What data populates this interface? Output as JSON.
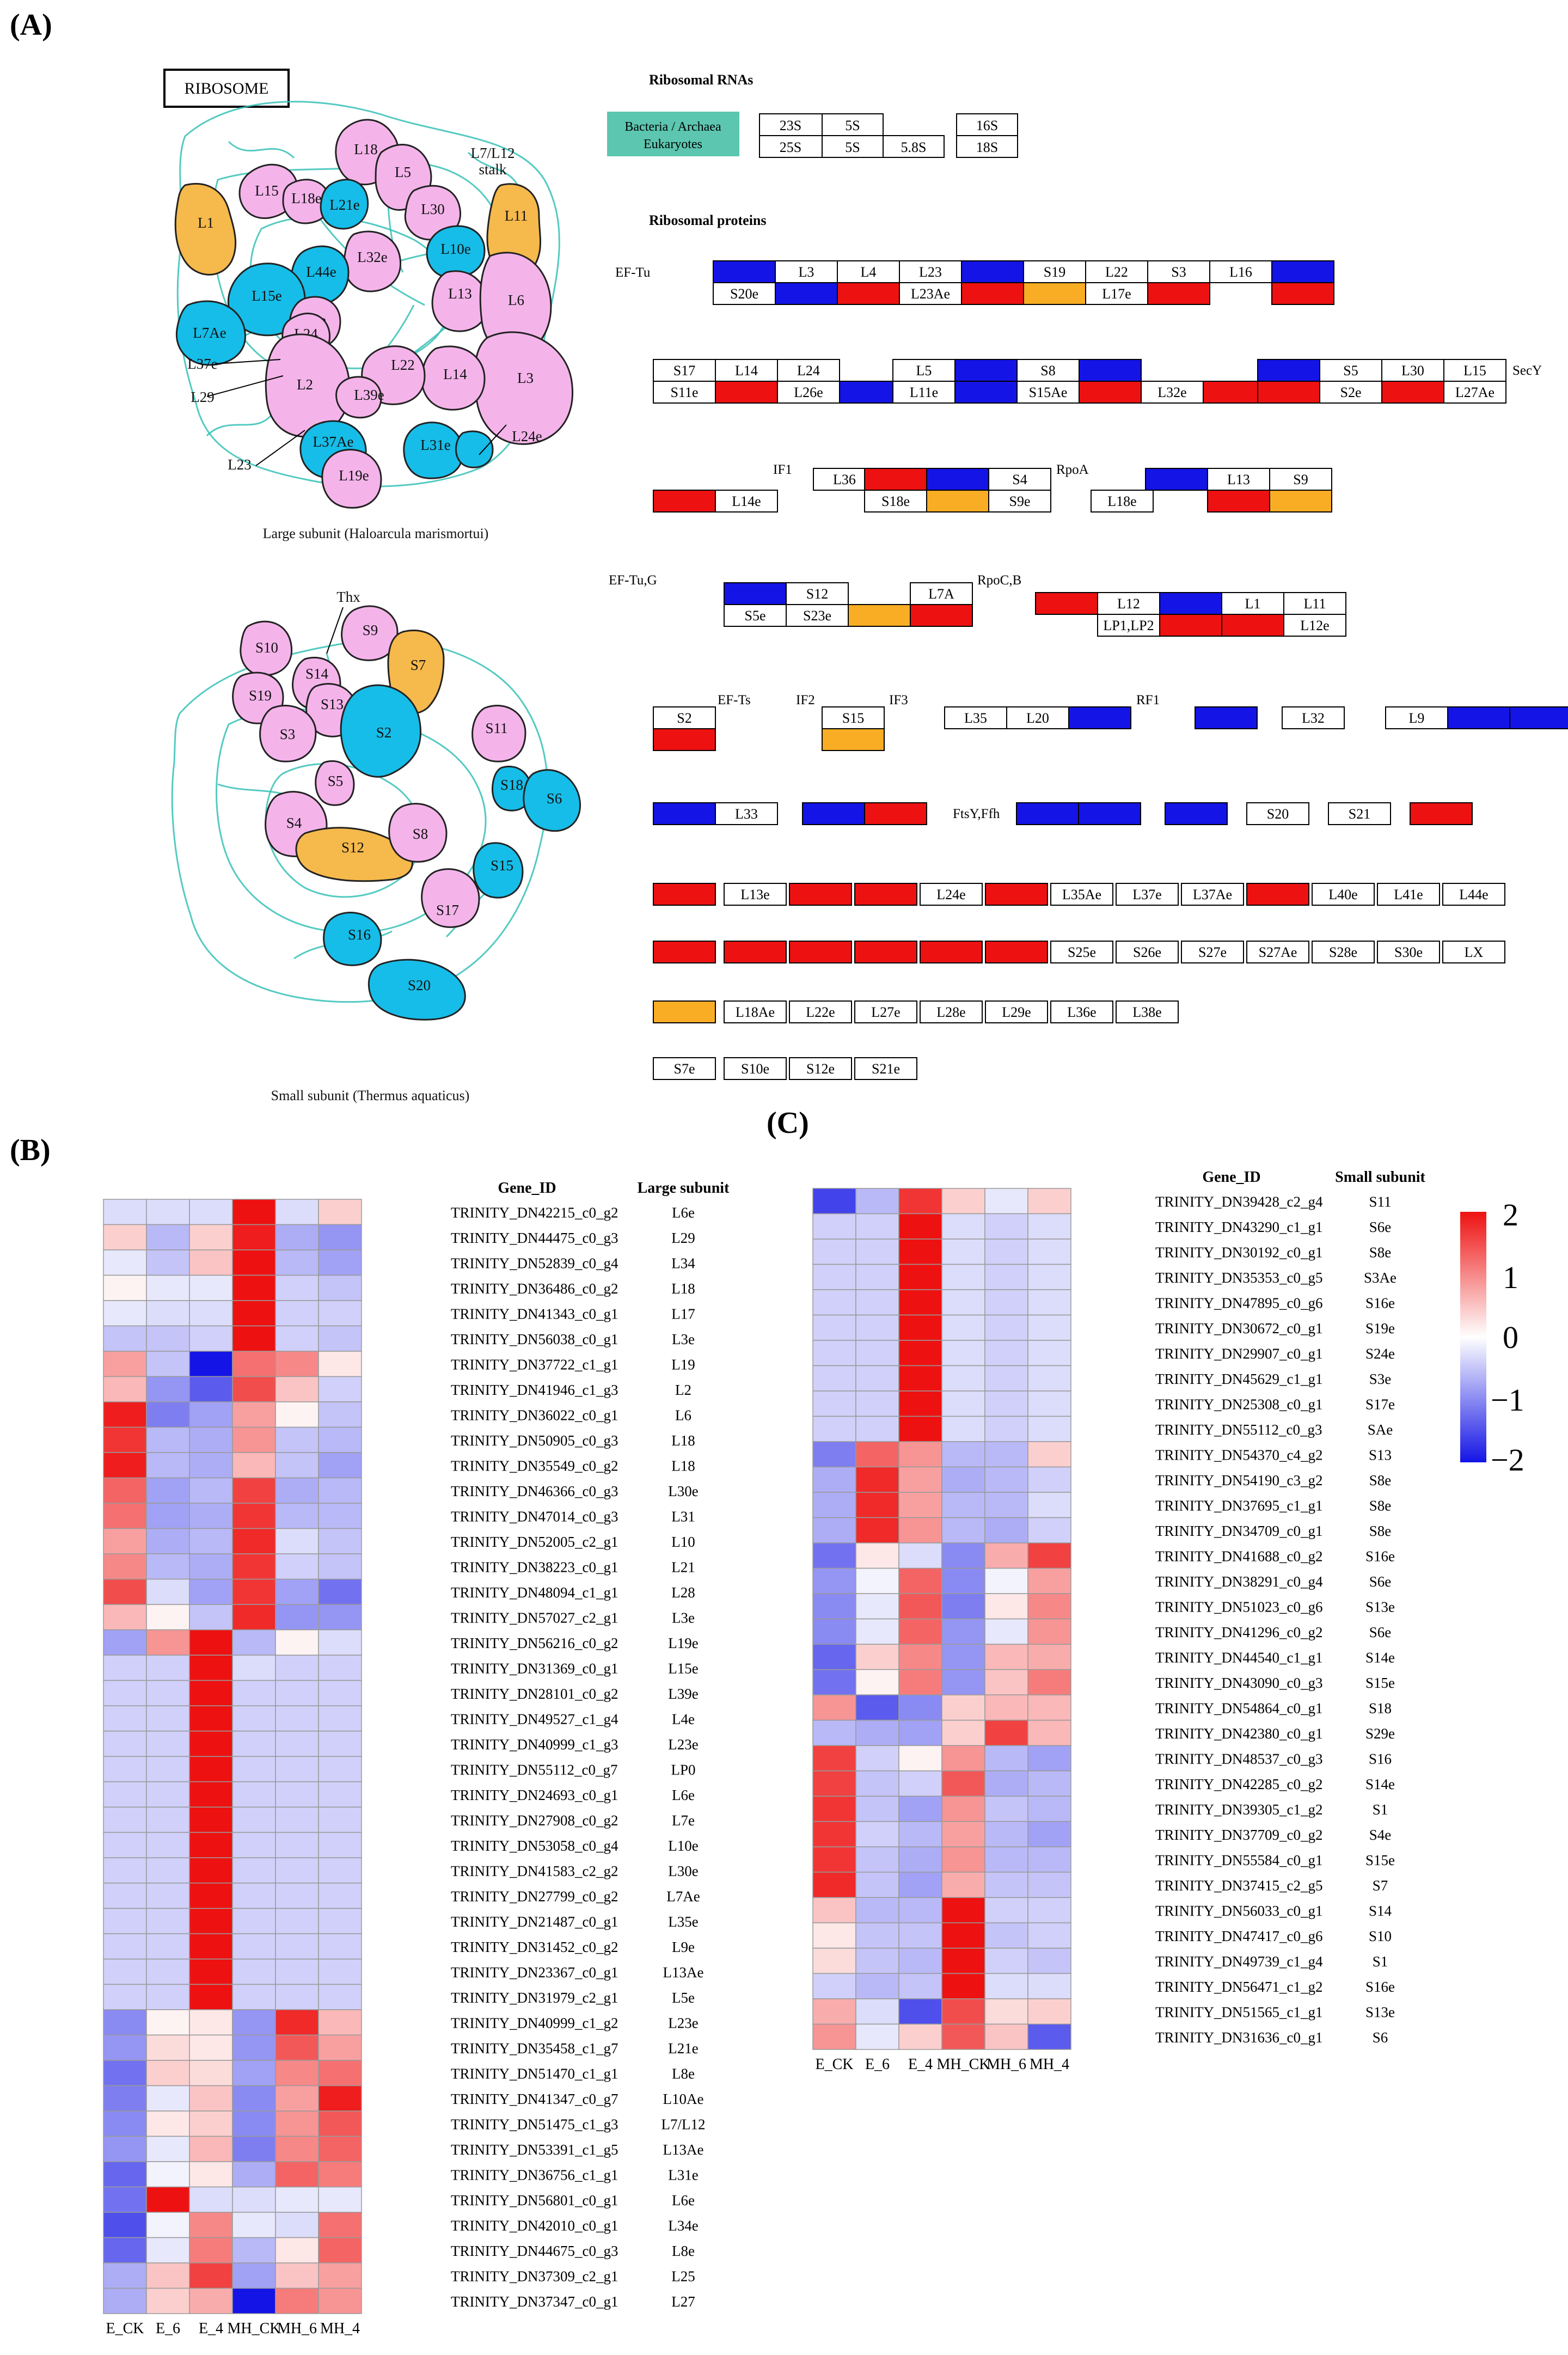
{
  "panels": {
    "a": "(A)",
    "b": "(B)",
    "c": "(C)"
  },
  "colors": {
    "red": "#ee1111",
    "blue": "#1414e6",
    "orange": "#f9ad24",
    "teal_box": "#5cc6b0",
    "pink": "#f4b4ea",
    "cyan": "#16bde8",
    "gold": "#f6b94b",
    "teal_line": "#36c1b6"
  },
  "ribosome": {
    "title": "RIBOSOME",
    "large_caption": "Large subunit (Haloarcula marismortui)",
    "small_caption": "Small subunit (Thermus aquaticus)",
    "stalk": "L7/L12",
    "stalk2": "stalk",
    "thx": "Thx"
  },
  "kegg": {
    "rrna_title": "Ribosomal RNAs",
    "rprot_title": "Ribosomal proteins",
    "legend_bac": "Bacteria / Archaea",
    "legend_euk": "Eukaryotes",
    "rrna_top": [
      "23S",
      "5S",
      "16S"
    ],
    "rrna_bottom": [
      "25S",
      "5S",
      "5.8S",
      "18S"
    ],
    "factors": [
      "EF-Tu",
      "SecY",
      "IF1",
      "RpoA",
      "EF-Tu,G",
      "RpoC,B",
      "EF-Ts",
      "IF2",
      "IF3",
      "RF1",
      "FtsY,Ffh"
    ]
  },
  "heatmap": {
    "columns": [
      "E_CK",
      "E_6",
      "E_4",
      "MH_CK",
      "MH_6",
      "MH_4"
    ],
    "gene_header": "Gene_ID",
    "large_header": "Large subunit",
    "small_header": "Small subunit",
    "legend_ticks": [
      "2",
      "1",
      "0",
      "−1",
      "−2"
    ],
    "large_genes": [
      "TRINITY_DN42215_c0_g2",
      "TRINITY_DN44475_c0_g3",
      "TRINITY_DN52839_c0_g4",
      "TRINITY_DN36486_c0_g2",
      "TRINITY_DN41343_c0_g1",
      "TRINITY_DN56038_c0_g1",
      "TRINITY_DN37722_c1_g1",
      "TRINITY_DN41946_c1_g3",
      "TRINITY_DN36022_c0_g1",
      "TRINITY_DN50905_c0_g3",
      "TRINITY_DN35549_c0_g2",
      "TRINITY_DN46366_c0_g3",
      "TRINITY_DN47014_c0_g3",
      "TRINITY_DN52005_c2_g1",
      "TRINITY_DN38223_c0_g1",
      "TRINITY_DN48094_c1_g1",
      "TRINITY_DN57027_c2_g1",
      "TRINITY_DN56216_c0_g2",
      "TRINITY_DN31369_c0_g1",
      "TRINITY_DN28101_c0_g2",
      "TRINITY_DN49527_c1_g4",
      "TRINITY_DN40999_c1_g3",
      "TRINITY_DN55112_c0_g7",
      "TRINITY_DN24693_c0_g1",
      "TRINITY_DN27908_c0_g2",
      "TRINITY_DN53058_c0_g4",
      "TRINITY_DN41583_c2_g2",
      "TRINITY_DN27799_c0_g2",
      "TRINITY_DN21487_c0_g1",
      "TRINITY_DN31452_c0_g2",
      "TRINITY_DN23367_c0_g1",
      "TRINITY_DN31979_c2_g1",
      "TRINITY_DN40999_c1_g2",
      "TRINITY_DN35458_c1_g7",
      "TRINITY_DN51470_c1_g1",
      "TRINITY_DN41347_c0_g7",
      "TRINITY_DN51475_c1_g3",
      "TRINITY_DN53391_c1_g5",
      "TRINITY_DN36756_c1_g1",
      "TRINITY_DN56801_c0_g1",
      "TRINITY_DN42010_c0_g1",
      "TRINITY_DN44675_c0_g3",
      "TRINITY_DN37309_c2_g1",
      "TRINITY_DN37347_c0_g1"
    ],
    "large_subunits": [
      "L6e",
      "L29",
      "L34",
      "L18",
      "L17",
      "L3e",
      "L19",
      "L2",
      "L6",
      "L18",
      "L18",
      "L30e",
      "L31",
      "L10",
      "L21",
      "L28",
      "L3e",
      "L19e",
      "L15e",
      "L39e",
      "L4e",
      "L23e",
      "LP0",
      "L6e",
      "L7e",
      "L10e",
      "L30e",
      "L7Ae",
      "L35e",
      "L9e",
      "L13Ae",
      "L5e",
      "L23e",
      "L21e",
      "L8e",
      "L10Ae",
      "L7/L12",
      "L13Ae",
      "L31e",
      "L6e",
      "L34e",
      "L8e",
      "L25",
      "L27"
    ],
    "large_values": [
      [
        -0.3,
        -0.3,
        -0.3,
        2,
        -0.3,
        0.4
      ],
      [
        0.4,
        -0.6,
        0.4,
        1.9,
        -0.7,
        -0.9
      ],
      [
        -0.2,
        -0.5,
        0.5,
        2,
        -0.6,
        -0.8
      ],
      [
        0.1,
        -0.2,
        -0.2,
        2,
        -0.4,
        -0.5
      ],
      [
        -0.2,
        -0.3,
        -0.3,
        2,
        -0.4,
        -0.4
      ],
      [
        -0.5,
        -0.5,
        -0.4,
        2,
        -0.4,
        -0.5
      ],
      [
        0.8,
        -0.5,
        -2,
        1.2,
        1,
        0.2
      ],
      [
        0.6,
        -0.9,
        -1.4,
        1.5,
        0.5,
        -0.4
      ],
      [
        1.9,
        -1.1,
        -0.8,
        0.8,
        0.1,
        -0.5
      ],
      [
        1.7,
        -0.6,
        -0.7,
        0.9,
        -0.5,
        -0.6
      ],
      [
        1.9,
        -0.6,
        -0.7,
        0.6,
        -0.5,
        -0.8
      ],
      [
        1.3,
        -0.8,
        -0.6,
        1.6,
        -0.7,
        -0.6
      ],
      [
        1.2,
        -0.8,
        -0.7,
        1.7,
        -0.6,
        -0.6
      ],
      [
        0.8,
        -0.7,
        -0.6,
        1.8,
        -0.3,
        -0.5
      ],
      [
        1,
        -0.6,
        -0.7,
        1.7,
        -0.4,
        -0.5
      ],
      [
        1.5,
        -0.3,
        -0.8,
        1.7,
        -0.8,
        -1.2
      ],
      [
        0.6,
        0.1,
        -0.5,
        1.8,
        -0.9,
        -0.9
      ],
      [
        -0.8,
        0.9,
        2,
        -0.6,
        0.1,
        -0.3
      ],
      [
        -0.4,
        -0.4,
        2,
        -0.3,
        -0.4,
        -0.4
      ],
      [
        -0.4,
        -0.4,
        2,
        -0.4,
        -0.4,
        -0.4
      ],
      [
        -0.4,
        -0.4,
        2,
        -0.4,
        -0.4,
        -0.4
      ],
      [
        -0.4,
        -0.4,
        2,
        -0.4,
        -0.4,
        -0.4
      ],
      [
        -0.4,
        -0.4,
        2,
        -0.4,
        -0.4,
        -0.4
      ],
      [
        -0.4,
        -0.4,
        2,
        -0.4,
        -0.4,
        -0.4
      ],
      [
        -0.4,
        -0.4,
        2,
        -0.4,
        -0.4,
        -0.4
      ],
      [
        -0.4,
        -0.4,
        2,
        -0.4,
        -0.4,
        -0.4
      ],
      [
        -0.4,
        -0.4,
        2,
        -0.4,
        -0.4,
        -0.4
      ],
      [
        -0.4,
        -0.4,
        2,
        -0.4,
        -0.4,
        -0.4
      ],
      [
        -0.4,
        -0.4,
        2,
        -0.4,
        -0.4,
        -0.4
      ],
      [
        -0.4,
        -0.4,
        2,
        -0.4,
        -0.4,
        -0.4
      ],
      [
        -0.4,
        -0.4,
        2,
        -0.4,
        -0.4,
        -0.4
      ],
      [
        -0.4,
        -0.4,
        2,
        -0.4,
        -0.4,
        -0.4
      ],
      [
        -1,
        0.1,
        0.2,
        -0.9,
        1.8,
        0.6
      ],
      [
        -0.9,
        0.3,
        0.2,
        -0.9,
        1.4,
        0.8
      ],
      [
        -1.2,
        0.4,
        0.3,
        -0.8,
        1,
        1.2
      ],
      [
        -1.1,
        -0.2,
        0.5,
        -1,
        0.8,
        1.9
      ],
      [
        -1,
        0.2,
        0.4,
        -1,
        0.9,
        1.4
      ],
      [
        -0.9,
        -0.2,
        0.6,
        -1.1,
        1,
        1.3
      ],
      [
        -1.3,
        -0.1,
        0.2,
        -0.7,
        1.3,
        1.1
      ],
      [
        -1.2,
        2,
        -0.3,
        -0.3,
        -0.2,
        -0.2
      ],
      [
        -1.5,
        -0.1,
        1,
        -0.2,
        -0.3,
        1.2
      ],
      [
        -1.3,
        -0.2,
        1.1,
        -0.6,
        0.2,
        1.3
      ],
      [
        -0.7,
        0.5,
        1.6,
        -0.8,
        0.5,
        0.8
      ],
      [
        -0.7,
        0.4,
        0.7,
        -2,
        1.1,
        0.9
      ]
    ],
    "small_genes": [
      "TRINITY_DN39428_c2_g4",
      "TRINITY_DN43290_c1_g1",
      "TRINITY_DN30192_c0_g1",
      "TRINITY_DN35353_c0_g5",
      "TRINITY_DN47895_c0_g6",
      "TRINITY_DN30672_c0_g1",
      "TRINITY_DN29907_c0_g1",
      "TRINITY_DN45629_c1_g1",
      "TRINITY_DN25308_c0_g1",
      "TRINITY_DN55112_c0_g3",
      "TRINITY_DN54370_c4_g2",
      "TRINITY_DN54190_c3_g2",
      "TRINITY_DN37695_c1_g1",
      "TRINITY_DN34709_c0_g1",
      "TRINITY_DN41688_c0_g2",
      "TRINITY_DN38291_c0_g4",
      "TRINITY_DN51023_c0_g6",
      "TRINITY_DN41296_c0_g2",
      "TRINITY_DN44540_c1_g1",
      "TRINITY_DN43090_c0_g3",
      "TRINITY_DN54864_c0_g1",
      "TRINITY_DN42380_c0_g1",
      "TRINITY_DN48537_c0_g3",
      "TRINITY_DN42285_c0_g2",
      "TRINITY_DN39305_c1_g2",
      "TRINITY_DN37709_c0_g2",
      "TRINITY_DN55584_c0_g1",
      "TRINITY_DN37415_c2_g5",
      "TRINITY_DN56033_c0_g1",
      "TRINITY_DN47417_c0_g6",
      "TRINITY_DN49739_c1_g4",
      "TRINITY_DN56471_c1_g2",
      "TRINITY_DN51565_c1_g1",
      "TRINITY_DN31636_c0_g1"
    ],
    "small_subunits": [
      "S11",
      "S6e",
      "S8e",
      "S3Ae",
      "S16e",
      "S19e",
      "S24e",
      "S3e",
      "S17e",
      "SAe",
      "S13",
      "S8e",
      "S8e",
      "S8e",
      "S16e",
      "S6e",
      "S13e",
      "S6e",
      "S14e",
      "S15e",
      "S18",
      "S29e",
      "S16",
      "S14e",
      "S1",
      "S4e",
      "S15e",
      "S7",
      "S14",
      "S10",
      "S1",
      "S16e",
      "S13e",
      "S6"
    ],
    "small_values": [
      [
        -1.6,
        -0.6,
        1.7,
        0.4,
        -0.2,
        0.4
      ],
      [
        -0.4,
        -0.4,
        2,
        -0.3,
        -0.4,
        -0.3
      ],
      [
        -0.4,
        -0.4,
        2,
        -0.3,
        -0.4,
        -0.3
      ],
      [
        -0.4,
        -0.4,
        2,
        -0.3,
        -0.4,
        -0.3
      ],
      [
        -0.4,
        -0.4,
        2,
        -0.3,
        -0.4,
        -0.3
      ],
      [
        -0.4,
        -0.4,
        2,
        -0.3,
        -0.4,
        -0.3
      ],
      [
        -0.4,
        -0.4,
        2,
        -0.3,
        -0.4,
        -0.3
      ],
      [
        -0.4,
        -0.4,
        2,
        -0.3,
        -0.4,
        -0.3
      ],
      [
        -0.4,
        -0.4,
        2,
        -0.3,
        -0.4,
        -0.3
      ],
      [
        -0.4,
        -0.4,
        2,
        -0.3,
        -0.4,
        -0.3
      ],
      [
        -1.1,
        1.3,
        0.9,
        -0.6,
        -0.6,
        0.4
      ],
      [
        -0.7,
        1.8,
        0.8,
        -0.7,
        -0.6,
        -0.4
      ],
      [
        -0.7,
        1.8,
        0.8,
        -0.6,
        -0.6,
        -0.3
      ],
      [
        -0.7,
        1.8,
        0.9,
        -0.6,
        -0.7,
        -0.4
      ],
      [
        -1.2,
        0.2,
        -0.3,
        -1,
        0.7,
        1.6
      ],
      [
        -0.9,
        -0.1,
        1.3,
        -1,
        -0.1,
        0.8
      ],
      [
        -1,
        -0.2,
        1.4,
        -1.1,
        0.2,
        1
      ],
      [
        -1,
        -0.2,
        1.3,
        -0.9,
        -0.2,
        0.9
      ],
      [
        -1.3,
        0.4,
        1,
        -0.9,
        0.6,
        0.7
      ],
      [
        -1.2,
        0.1,
        1.1,
        -0.9,
        0.5,
        1.1
      ],
      [
        0.9,
        -1.4,
        -1,
        0.4,
        0.6,
        0.6
      ],
      [
        -0.6,
        -0.7,
        -0.8,
        0.4,
        1.6,
        0.6
      ],
      [
        1.6,
        -0.4,
        0.1,
        0.9,
        -0.6,
        -0.8
      ],
      [
        1.6,
        -0.5,
        -0.4,
        1.4,
        -0.7,
        -0.6
      ],
      [
        1.7,
        -0.5,
        -0.8,
        0.9,
        -0.5,
        -0.6
      ],
      [
        1.7,
        -0.4,
        -0.6,
        0.8,
        -0.6,
        -0.8
      ],
      [
        1.7,
        -0.5,
        -0.7,
        0.9,
        -0.6,
        -0.6
      ],
      [
        1.8,
        -0.5,
        -0.8,
        0.7,
        -0.5,
        -0.5
      ],
      [
        0.5,
        -0.6,
        -0.6,
        2,
        -0.4,
        -0.4
      ],
      [
        0.2,
        -0.5,
        -0.5,
        2,
        -0.5,
        -0.4
      ],
      [
        0.3,
        -0.5,
        -0.6,
        2,
        -0.4,
        -0.5
      ],
      [
        -0.4,
        -0.6,
        -0.5,
        2,
        -0.3,
        -0.3
      ],
      [
        0.7,
        -0.3,
        -1.5,
        1.5,
        0.3,
        0.4
      ],
      [
        0.9,
        -0.2,
        0.4,
        1.4,
        0.5,
        -1.4
      ]
    ]
  }
}
